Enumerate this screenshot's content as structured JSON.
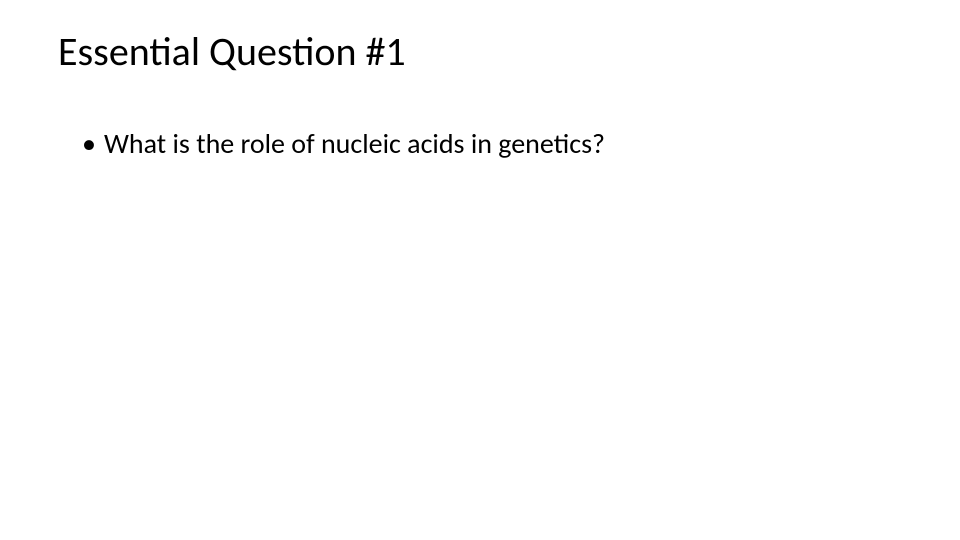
{
  "slide": {
    "title": "Essential Question #1",
    "bullets": [
      "What is the role of nucleic acids in genetics?"
    ],
    "background_color": "#ffffff",
    "text_color": "#000000",
    "title_fontsize": 40,
    "body_fontsize": 28,
    "font_family": "Calibri"
  }
}
